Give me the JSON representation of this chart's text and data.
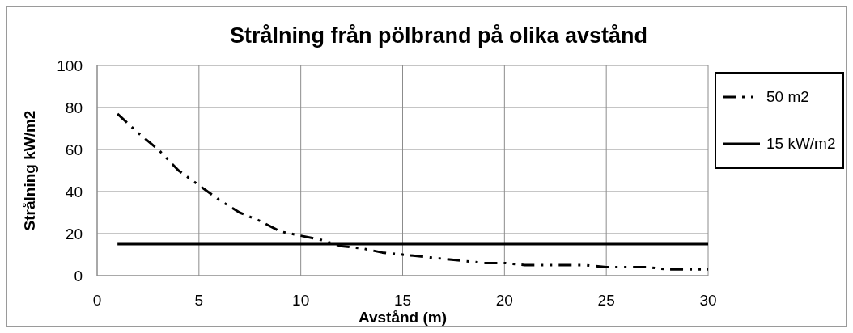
{
  "chart_data": {
    "type": "line",
    "title": "Strålning från pölbrand på olika avstånd",
    "xlabel": "Avstånd (m)",
    "ylabel": "Strålning kW/m2",
    "series": [
      {
        "name": "50 m2",
        "color": "#000000",
        "line_style": "dashed",
        "x": [
          1,
          2,
          3,
          4,
          5,
          6,
          7,
          8,
          9,
          10,
          11,
          12,
          13,
          14,
          15,
          16,
          17,
          18,
          19,
          20,
          21,
          22,
          23,
          24,
          25,
          26,
          27,
          28,
          29,
          30
        ],
        "values": [
          77,
          68,
          60,
          50,
          43,
          36,
          30,
          26,
          21,
          19,
          17,
          14,
          13,
          11,
          10,
          9,
          8,
          7,
          6,
          6,
          5,
          5,
          5,
          5,
          4,
          4,
          4,
          3,
          3,
          3
        ]
      },
      {
        "name": "15 kW/m2",
        "color": "#000000",
        "line_style": "solid",
        "x": [
          1,
          30
        ],
        "values": [
          15,
          15
        ]
      }
    ],
    "xlim": [
      0,
      30
    ],
    "xticks": [
      0,
      5,
      10,
      15,
      20,
      25,
      30
    ],
    "ylim": [
      0,
      100
    ],
    "yticks": [
      0,
      20,
      40,
      60,
      80,
      100
    ],
    "grid": true,
    "legend": "top right",
    "marker": "none"
  }
}
